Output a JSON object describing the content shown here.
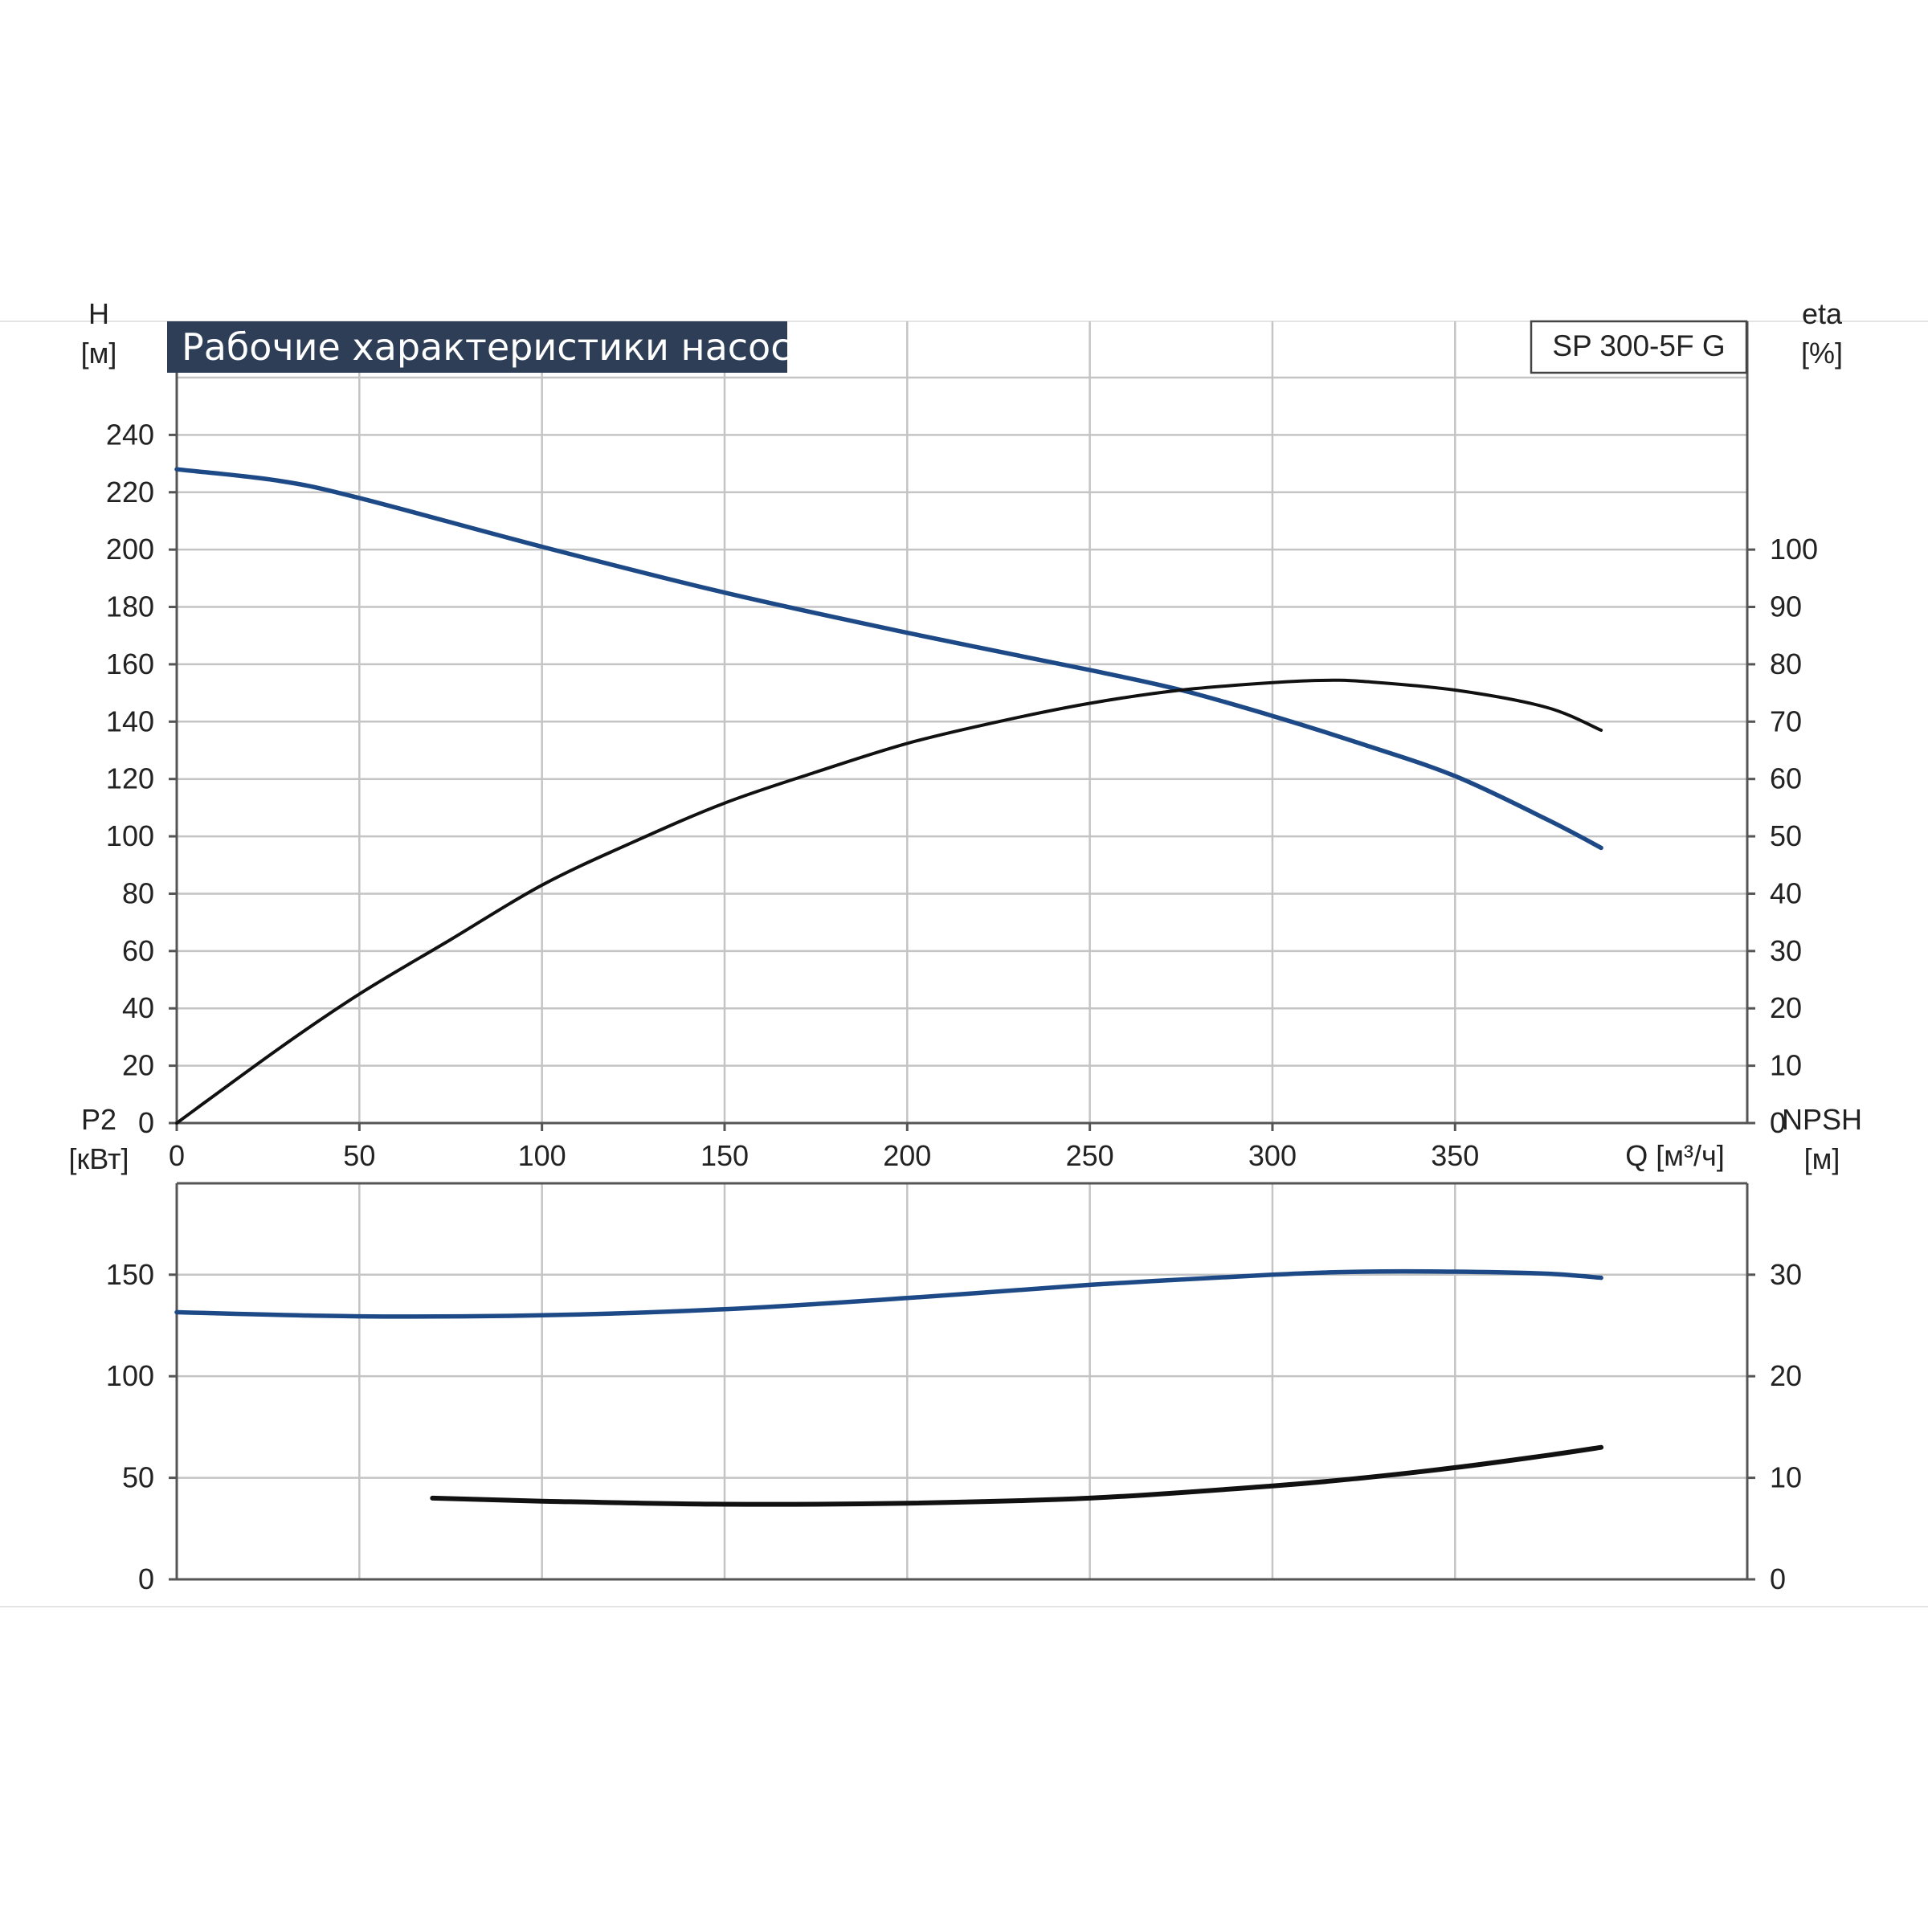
{
  "colors": {
    "title_bg": "#2f3e57",
    "curve_blue": "#1d4a86",
    "curve_black": "#111111",
    "grid": "#c4c4c4",
    "frame": "#555555"
  },
  "chart_data": [
    {
      "type": "line",
      "title": "Рабочие характеристики насоса",
      "model": "SP 300-5F G",
      "xlabel": "Q [м³/ч]",
      "xlim": [
        0,
        430
      ],
      "xticks": [
        0,
        50,
        100,
        150,
        200,
        250,
        300,
        350
      ],
      "y_left": {
        "label_line1": "H",
        "label_line2": "[м]",
        "lim": [
          0,
          260
        ],
        "ticks": [
          0,
          20,
          40,
          60,
          80,
          100,
          120,
          140,
          160,
          180,
          200,
          220,
          240
        ]
      },
      "y_right": {
        "label_line1": "eta",
        "label_line2": "[%]",
        "lim": [
          0,
          130
        ],
        "ticks": [
          0,
          10,
          20,
          30,
          40,
          50,
          60,
          70,
          80,
          90,
          100
        ]
      },
      "grid": true,
      "series": [
        {
          "axis": "left",
          "color": "#1d4a86",
          "points": [
            [
              0,
              228
            ],
            [
              28,
              224
            ],
            [
              50,
              218
            ],
            [
              100,
              201
            ],
            [
              150,
              185
            ],
            [
              200,
              171
            ],
            [
              250,
              158
            ],
            [
              275,
              151
            ],
            [
              300,
              142
            ],
            [
              325,
              132
            ],
            [
              350,
              121
            ],
            [
              375,
              106
            ],
            [
              390,
              96
            ]
          ]
        },
        {
          "axis": "right",
          "color": "#111111",
          "points": [
            [
              0,
              0
            ],
            [
              28,
              13
            ],
            [
              50,
              22.5
            ],
            [
              75,
              32
            ],
            [
              100,
              41.5
            ],
            [
              125,
              49
            ],
            [
              150,
              55.8
            ],
            [
              175,
              61.2
            ],
            [
              200,
              66.2
            ],
            [
              225,
              70
            ],
            [
              250,
              73.2
            ],
            [
              275,
              75.5
            ],
            [
              300,
              76.8
            ],
            [
              315,
              77.2
            ],
            [
              325,
              77
            ],
            [
              350,
              75.5
            ],
            [
              375,
              72.5
            ],
            [
              390,
              68.5
            ]
          ]
        }
      ]
    },
    {
      "type": "line",
      "xlim": [
        0,
        430
      ],
      "xticks": [
        0,
        50,
        100,
        150,
        200,
        250,
        300,
        350
      ],
      "y_left": {
        "label_line1": "P2",
        "label_line2": "[кВт]",
        "lim": [
          0,
          195
        ],
        "ticks": [
          0,
          50,
          100,
          150
        ]
      },
      "y_right": {
        "label_line1": "NPSH",
        "label_line2": "[м]",
        "lim": [
          0,
          39
        ],
        "ticks": [
          0,
          10,
          20,
          30
        ]
      },
      "grid": true,
      "series": [
        {
          "axis": "left",
          "color": "#1d4a86",
          "points": [
            [
              0,
              131.5
            ],
            [
              50,
              129.5
            ],
            [
              100,
              130
            ],
            [
              150,
              133
            ],
            [
              200,
              138.5
            ],
            [
              250,
              145
            ],
            [
              300,
              150
            ],
            [
              325,
              151.5
            ],
            [
              350,
              151.5
            ],
            [
              375,
              150.5
            ],
            [
              390,
              148.5
            ]
          ]
        },
        {
          "axis": "right",
          "color": "#111111",
          "points": [
            [
              70,
              8.0
            ],
            [
              100,
              7.7
            ],
            [
              150,
              7.4
            ],
            [
              200,
              7.5
            ],
            [
              250,
              8.0
            ],
            [
              300,
              9.2
            ],
            [
              325,
              10.0
            ],
            [
              350,
              11.0
            ],
            [
              375,
              12.2
            ],
            [
              390,
              13.0
            ]
          ]
        }
      ]
    }
  ]
}
